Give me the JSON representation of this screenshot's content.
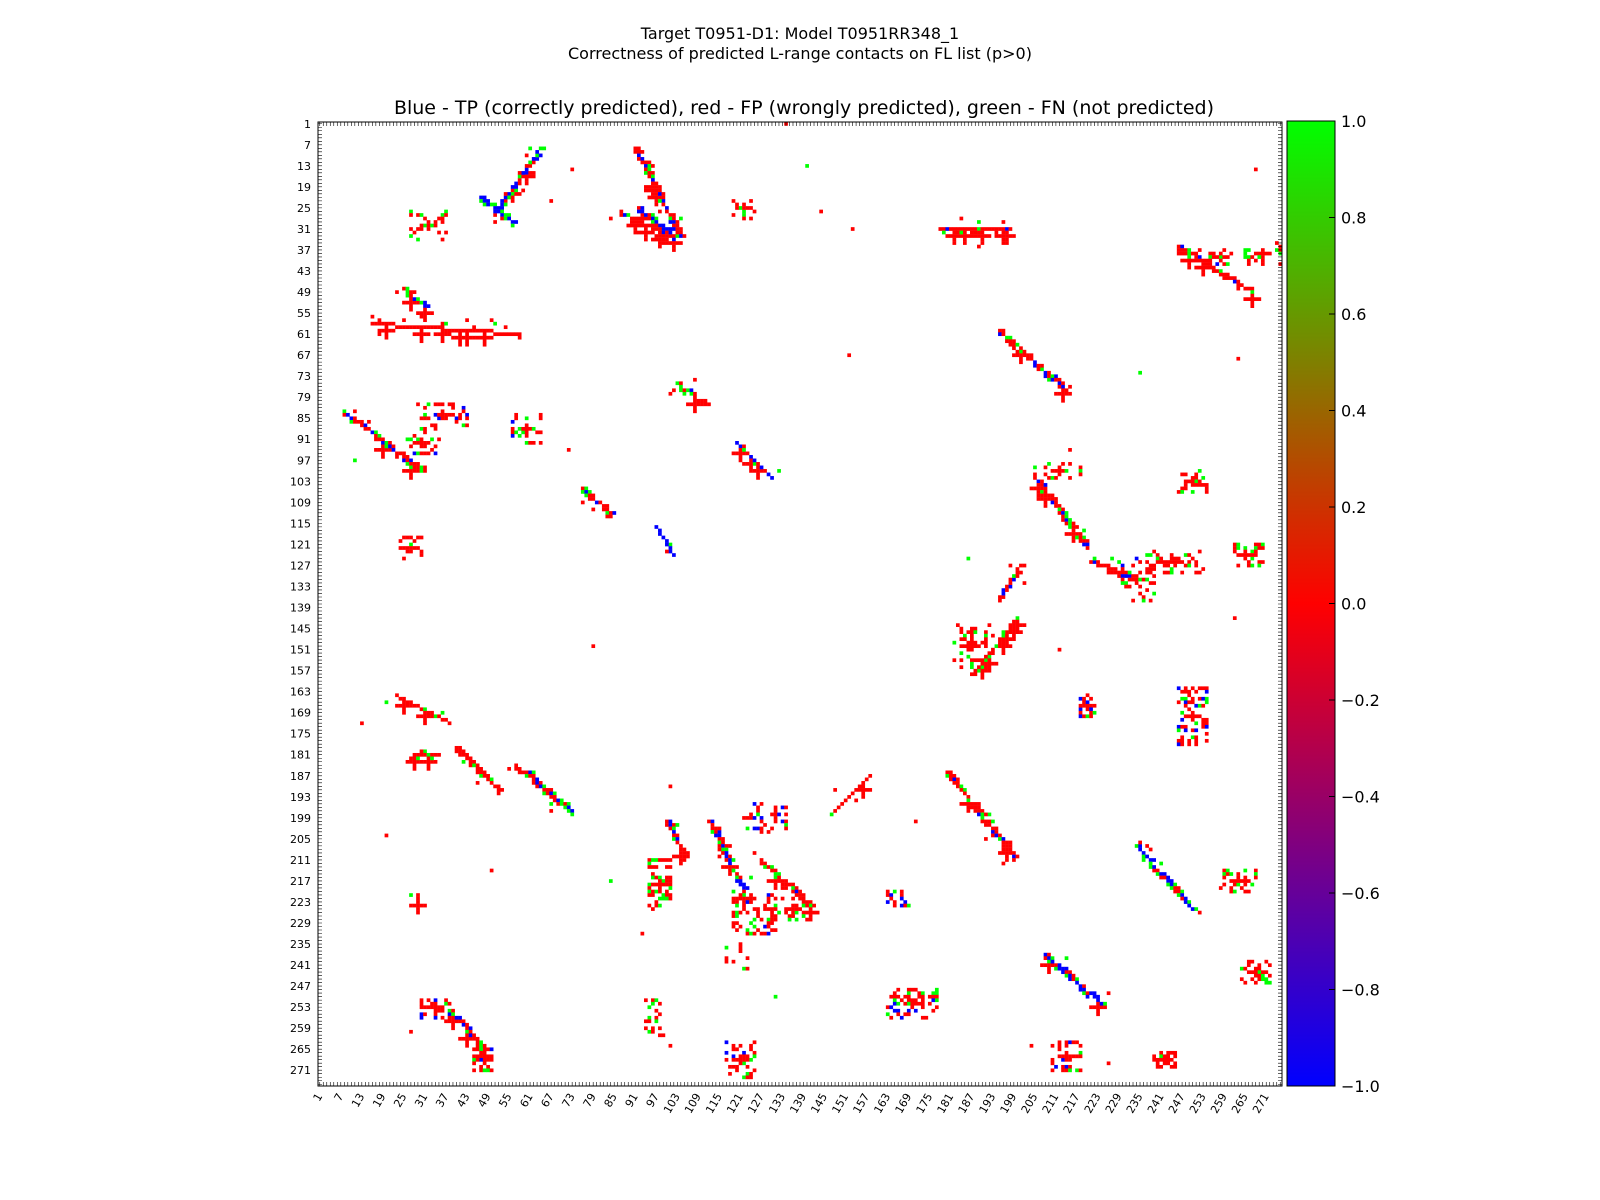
{
  "chart_data": {
    "type": "heatmap",
    "title_lines": [
      "Target T0951-D1: Model T0951RR348_1",
      "Correctness of predicted L-range contacts on FL list (p>0)"
    ],
    "subtitle": "Blue - TP (correctly predicted), red - FP (wrongly predicted), green - FN (not predicted)",
    "xlabel": "",
    "ylabel": "",
    "axis_range": [
      1,
      275
    ],
    "y_inverted": true,
    "tick_labels": [
      "1",
      "7",
      "13",
      "19",
      "25",
      "31",
      "37",
      "43",
      "49",
      "55",
      "61",
      "67",
      "73",
      "79",
      "85",
      "91",
      "97",
      "103",
      "109",
      "115",
      "121",
      "127",
      "133",
      "139",
      "145",
      "151",
      "157",
      "163",
      "169",
      "175",
      "181",
      "187",
      "193",
      "199",
      "205",
      "211",
      "217",
      "223",
      "229",
      "235",
      "241",
      "247",
      "253",
      "259",
      "265",
      "271"
    ],
    "colorbar": {
      "range": [
        -1.0,
        1.0
      ],
      "colors": [
        "#0000ff",
        "#ff0000",
        "#00ff00"
      ],
      "tick_labels": [
        "1.0",
        "0.8",
        "0.6",
        "0.4",
        "0.2",
        "0.0",
        "−0.2",
        "−0.4",
        "−0.6",
        "−0.8",
        "−1.0"
      ]
    },
    "legend": {
      "tp": {
        "value": -1,
        "color": "#0000ff"
      },
      "fp": {
        "value": 0,
        "color": "#ff0000"
      },
      "fn": {
        "value": 1,
        "color": "#00ff00"
      }
    },
    "clusters": [
      {
        "kind": "diag",
        "from": [
          52,
          25
        ],
        "to": [
          64,
          8
        ],
        "tp": 0.85,
        "fp": 0.1,
        "w": 1
      },
      {
        "kind": "diag",
        "from": [
          47,
          22
        ],
        "to": [
          56,
          29
        ],
        "tp": 0.8,
        "fp": 0.15,
        "w": 1
      },
      {
        "kind": "diag",
        "from": [
          92,
          25
        ],
        "to": [
          102,
          33
        ],
        "tp": 0.8,
        "fp": 0.15,
        "w": 1
      },
      {
        "kind": "diag",
        "from": [
          87,
          26
        ],
        "to": [
          101,
          33
        ],
        "tp": 0.05,
        "fp": 0.8,
        "w": 1
      },
      {
        "kind": "diag",
        "from": [
          25,
          48
        ],
        "to": [
          31,
          53
        ],
        "tp": 0.8,
        "fp": 0.15,
        "w": 1
      },
      {
        "kind": "diag",
        "from": [
          16,
          58
        ],
        "to": [
          58,
          61
        ],
        "tp": 0.0,
        "fp": 1.0,
        "w": 0
      },
      {
        "kind": "diag",
        "from": [
          8,
          83
        ],
        "to": [
          30,
          100
        ],
        "tp": 0.25,
        "fp": 0.6,
        "w": 1
      },
      {
        "kind": "diag",
        "from": [
          120,
          92
        ],
        "to": [
          130,
          102
        ],
        "tp": 0.9,
        "fp": 0.05,
        "w": 0
      },
      {
        "kind": "diag",
        "from": [
          97,
          116
        ],
        "to": [
          102,
          124
        ],
        "tp": 0.8,
        "fp": 0.15,
        "w": 0
      },
      {
        "kind": "diag",
        "from": [
          28,
          181
        ],
        "to": [
          34,
          181
        ],
        "tp": 0.3,
        "fp": 0.6,
        "w": 1
      },
      {
        "kind": "diag",
        "from": [
          40,
          179
        ],
        "to": [
          52,
          191
        ],
        "tp": 0.0,
        "fp": 0.85,
        "w": 1
      },
      {
        "kind": "diag",
        "from": [
          57,
          184
        ],
        "to": [
          73,
          197
        ],
        "tp": 0.3,
        "fp": 0.6,
        "w": 1
      },
      {
        "kind": "diag",
        "from": [
          112,
          200
        ],
        "to": [
          122,
          220
        ],
        "tp": 0.5,
        "fp": 0.45,
        "w": 1
      },
      {
        "kind": "diag",
        "from": [
          127,
          211
        ],
        "to": [
          141,
          224
        ],
        "tp": 0.05,
        "fp": 0.8,
        "w": 1
      },
      {
        "kind": "diag",
        "from": [
          180,
          186
        ],
        "to": [
          199,
          210
        ],
        "tp": 0.15,
        "fp": 0.75,
        "w": 1
      },
      {
        "kind": "diag",
        "from": [
          195,
          60
        ],
        "to": [
          214,
          77
        ],
        "tp": 0.25,
        "fp": 0.65,
        "w": 1
      },
      {
        "kind": "diag",
        "from": [
          234,
          207
        ],
        "to": [
          250,
          225
        ],
        "tp": 0.7,
        "fp": 0.25,
        "w": 1
      },
      {
        "kind": "diag",
        "from": [
          208,
          238
        ],
        "to": [
          224,
          252
        ],
        "tp": 0.7,
        "fp": 0.25,
        "w": 1
      },
      {
        "kind": "diag",
        "from": [
          206,
          103
        ],
        "to": [
          220,
          122
        ],
        "tp": 0.25,
        "fp": 0.65,
        "w": 1
      },
      {
        "kind": "diag",
        "from": [
          221,
          126
        ],
        "to": [
          235,
          131
        ],
        "tp": 0.1,
        "fp": 0.8,
        "w": 1
      },
      {
        "kind": "diag",
        "from": [
          188,
          158
        ],
        "to": [
          200,
          142
        ],
        "tp": 0.0,
        "fp": 0.75,
        "w": 0
      },
      {
        "kind": "diag",
        "from": [
          195,
          136
        ],
        "to": [
          201,
          127
        ],
        "tp": 0.3,
        "fp": 0.6,
        "w": 1
      },
      {
        "kind": "diag",
        "from": [
          38,
          254
        ],
        "to": [
          48,
          265
        ],
        "tp": 0.15,
        "fp": 0.75,
        "w": 1
      },
      {
        "kind": "diag",
        "from": [
          147,
          198
        ],
        "to": [
          158,
          187
        ],
        "tp": 0.0,
        "fp": 0.8,
        "w": 0
      },
      {
        "kind": "diag",
        "from": [
          100,
          200
        ],
        "to": [
          105,
          210
        ],
        "tp": 0.3,
        "fp": 0.6,
        "w": 1
      },
      {
        "kind": "diag",
        "from": [
          103,
          75
        ],
        "to": [
          111,
          81
        ],
        "tp": 0.1,
        "fp": 0.75,
        "w": 1
      },
      {
        "kind": "diag",
        "from": [
          76,
          105
        ],
        "to": [
          84,
          112
        ],
        "tp": 0.1,
        "fp": 0.75,
        "w": 1
      },
      {
        "kind": "diag",
        "from": [
          91,
          8
        ],
        "to": [
          104,
          33
        ],
        "tp": 0.2,
        "fp": 0.7,
        "w": 1
      },
      {
        "kind": "diag",
        "from": [
          23,
          164
        ],
        "to": [
          38,
          172
        ],
        "tp": 0.0,
        "fp": 0.9,
        "w": 0
      },
      {
        "kind": "diag",
        "from": [
          246,
          36
        ],
        "to": [
          267,
          49
        ],
        "tp": 0.2,
        "fp": 0.65,
        "w": 1
      },
      {
        "kind": "diag",
        "from": [
          178,
          31
        ],
        "to": [
          197,
          31
        ],
        "tp": 0.2,
        "fp": 0.7,
        "w": 1
      },
      {
        "kind": "diag",
        "from": [
          29,
          221
        ],
        "to": [
          29,
          223
        ],
        "tp": 0.0,
        "fp": 1.0,
        "w": 0
      },
      {
        "kind": "box",
        "center": [
          36,
          84
        ],
        "size": [
          14,
          6
        ],
        "density": 0.35,
        "tp": 0.1,
        "fp": 0.8
      },
      {
        "kind": "box",
        "center": [
          34,
          253
        ],
        "size": [
          8,
          5
        ],
        "density": 0.4,
        "tp": 0.2,
        "fp": 0.7
      },
      {
        "kind": "box",
        "center": [
          48,
          268
        ],
        "size": [
          6,
          6
        ],
        "density": 0.3,
        "tp": 0.1,
        "fp": 0.7
      },
      {
        "kind": "box",
        "center": [
          170,
          252
        ],
        "size": [
          14,
          8
        ],
        "density": 0.4,
        "tp": 0.25,
        "fp": 0.65
      },
      {
        "kind": "box",
        "center": [
          60,
          88
        ],
        "size": [
          8,
          8
        ],
        "density": 0.3,
        "tp": 0.1,
        "fp": 0.7
      },
      {
        "kind": "box",
        "center": [
          122,
          25
        ],
        "size": [
          6,
          6
        ],
        "density": 0.3,
        "tp": 0.0,
        "fp": 0.8
      },
      {
        "kind": "box",
        "center": [
          125,
          226
        ],
        "size": [
          12,
          12
        ],
        "density": 0.35,
        "tp": 0.1,
        "fp": 0.75
      },
      {
        "kind": "box",
        "center": [
          128,
          199
        ],
        "size": [
          12,
          8
        ],
        "density": 0.35,
        "tp": 0.2,
        "fp": 0.7
      },
      {
        "kind": "box",
        "center": [
          98,
          218
        ],
        "size": [
          6,
          14
        ],
        "density": 0.3,
        "tp": 0.0,
        "fp": 0.8
      },
      {
        "kind": "box",
        "center": [
          166,
          222
        ],
        "size": [
          6,
          4
        ],
        "density": 0.5,
        "tp": 0.3,
        "fp": 0.6
      },
      {
        "kind": "box",
        "center": [
          220,
          167
        ],
        "size": [
          4,
          6
        ],
        "density": 0.5,
        "tp": 0.3,
        "fp": 0.6
      },
      {
        "kind": "box",
        "center": [
          250,
          170
        ],
        "size": [
          8,
          16
        ],
        "density": 0.35,
        "tp": 0.15,
        "fp": 0.7
      },
      {
        "kind": "box",
        "center": [
          263,
          217
        ],
        "size": [
          10,
          6
        ],
        "density": 0.35,
        "tp": 0.05,
        "fp": 0.75
      },
      {
        "kind": "box",
        "center": [
          265,
          124
        ],
        "size": [
          10,
          6
        ],
        "density": 0.35,
        "tp": 0.05,
        "fp": 0.7
      },
      {
        "kind": "box",
        "center": [
          250,
          103
        ],
        "size": [
          8,
          6
        ],
        "density": 0.3,
        "tp": 0.0,
        "fp": 0.75
      },
      {
        "kind": "box",
        "center": [
          245,
          126
        ],
        "size": [
          16,
          6
        ],
        "density": 0.25,
        "tp": 0.0,
        "fp": 0.8
      },
      {
        "kind": "box",
        "center": [
          214,
          267
        ],
        "size": [
          8,
          8
        ],
        "density": 0.35,
        "tp": 0.15,
        "fp": 0.75
      },
      {
        "kind": "box",
        "center": [
          242,
          268
        ],
        "size": [
          6,
          4
        ],
        "density": 0.4,
        "tp": 0.1,
        "fp": 0.8
      },
      {
        "kind": "box",
        "center": [
          268,
          243
        ],
        "size": [
          8,
          6
        ],
        "density": 0.35,
        "tp": 0.05,
        "fp": 0.7
      },
      {
        "kind": "box",
        "center": [
          258,
          39
        ],
        "size": [
          6,
          4
        ],
        "density": 0.35,
        "tp": 0.15,
        "fp": 0.7
      },
      {
        "kind": "box",
        "center": [
          121,
          268
        ],
        "size": [
          8,
          10
        ],
        "density": 0.25,
        "tp": 0.1,
        "fp": 0.7
      },
      {
        "kind": "box",
        "center": [
          96,
          256
        ],
        "size": [
          4,
          10
        ],
        "density": 0.3,
        "tp": 0.0,
        "fp": 0.7
      },
      {
        "kind": "box",
        "center": [
          120,
          238
        ],
        "size": [
          6,
          8
        ],
        "density": 0.2,
        "tp": 0.0,
        "fp": 0.8
      },
      {
        "kind": "box",
        "center": [
          136,
          225
        ],
        "size": [
          8,
          6
        ],
        "density": 0.35,
        "tp": 0.0,
        "fp": 0.7
      },
      {
        "kind": "box",
        "center": [
          32,
          30
        ],
        "size": [
          10,
          8
        ],
        "density": 0.2,
        "tp": 0.0,
        "fp": 0.8
      },
      {
        "kind": "box",
        "center": [
          212,
          100
        ],
        "size": [
          14,
          4
        ],
        "density": 0.25,
        "tp": 0.0,
        "fp": 0.7
      },
      {
        "kind": "box",
        "center": [
          30,
          92
        ],
        "size": [
          10,
          8
        ],
        "density": 0.25,
        "tp": 0.05,
        "fp": 0.7
      },
      {
        "kind": "box",
        "center": [
          27,
          122
        ],
        "size": [
          6,
          6
        ],
        "density": 0.3,
        "tp": 0.0,
        "fp": 0.8
      },
      {
        "kind": "box",
        "center": [
          270,
          38
        ],
        "size": [
          10,
          6
        ],
        "density": 0.2,
        "tp": 0.0,
        "fp": 0.6
      },
      {
        "kind": "box",
        "center": [
          187,
          150
        ],
        "size": [
          10,
          12
        ],
        "density": 0.25,
        "tp": 0.0,
        "fp": 0.75
      },
      {
        "kind": "box",
        "center": [
          234,
          131
        ],
        "size": [
          10,
          12
        ],
        "density": 0.25,
        "tp": 0.05,
        "fp": 0.75
      }
    ]
  }
}
